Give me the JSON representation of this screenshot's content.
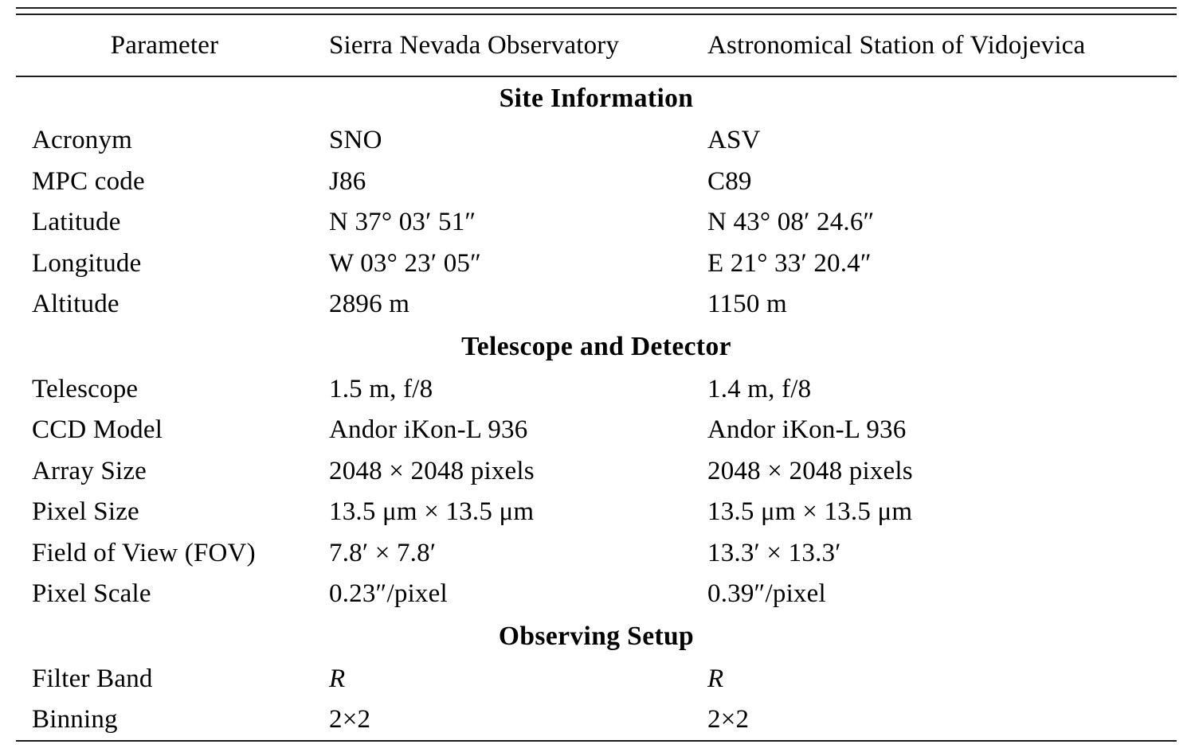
{
  "table": {
    "columns": [
      "Parameter",
      "Sierra Nevada Observatory",
      "Astronomical Station of Vidojevica"
    ],
    "sections": [
      {
        "title": "Site Information",
        "rows": [
          {
            "param": "Acronym",
            "sno": "SNO",
            "asv": "ASV"
          },
          {
            "param": "MPC code",
            "sno": "J86",
            "asv": "C89"
          },
          {
            "param": "Latitude",
            "sno": "N 37° 03′ 51″",
            "asv": "N 43° 08′ 24.6″"
          },
          {
            "param": "Longitude",
            "sno": "W 03° 23′ 05″",
            "asv": "E 21° 33′ 20.4″"
          },
          {
            "param": "Altitude",
            "sno": "2896 m",
            "asv": "1150 m"
          }
        ]
      },
      {
        "title": "Telescope and Detector",
        "rows": [
          {
            "param": "Telescope",
            "sno": "1.5 m, f/8",
            "asv": "1.4 m, f/8"
          },
          {
            "param": "CCD Model",
            "sno": "Andor iKon-L 936",
            "asv": "Andor iKon-L 936"
          },
          {
            "param": "Array Size",
            "sno": "2048 × 2048 pixels",
            "asv": "2048 × 2048 pixels"
          },
          {
            "param": "Pixel Size",
            "sno": "13.5 μm × 13.5 μm",
            "asv": "13.5 μm × 13.5 μm"
          },
          {
            "param": "Field of View (FOV)",
            "sno": "7.8′ × 7.8′",
            "asv": "13.3′ × 13.3′"
          },
          {
            "param": "Pixel Scale",
            "sno": "0.23″/pixel",
            "asv": "0.39″/pixel"
          }
        ]
      },
      {
        "title": "Observing Setup",
        "rows": [
          {
            "param": "Filter Band",
            "sno": "R",
            "asv": "R",
            "value_style": "italic"
          },
          {
            "param": "Binning",
            "sno": "2×2",
            "asv": "2×2"
          }
        ]
      }
    ]
  },
  "colors": {
    "background": "#ffffff",
    "text": "#000000",
    "rule": "#1b1b1b"
  }
}
